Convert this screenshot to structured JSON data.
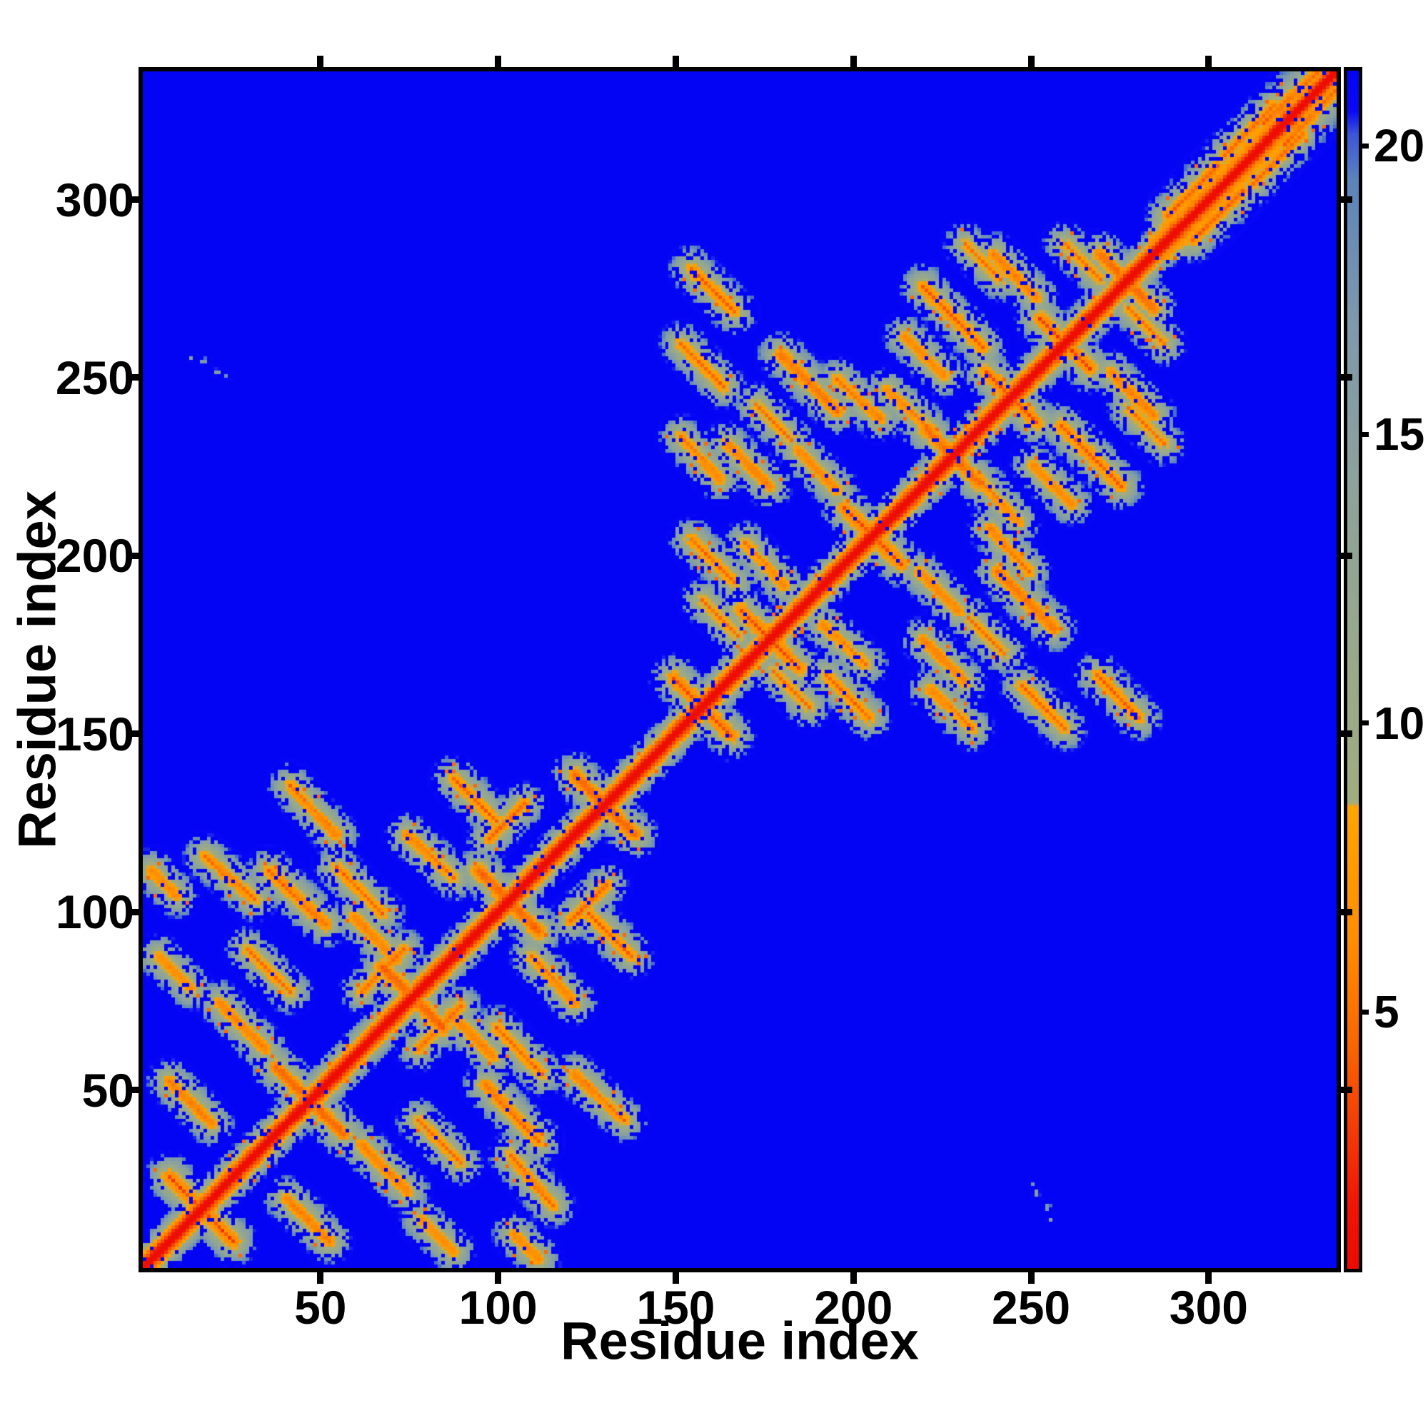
{
  "chart_data": {
    "type": "heatmap",
    "title": "",
    "xlabel": "Residue index",
    "ylabel": "Residue index",
    "n_residues": 336,
    "x_ticks": [
      50,
      100,
      150,
      200,
      250,
      300
    ],
    "y_ticks": [
      50,
      100,
      150,
      200,
      250,
      300
    ],
    "grid": false,
    "legend_position": "colorbar-right",
    "background_color": "#0404f5",
    "colorbar": {
      "min": 0.55,
      "max": 21.3,
      "ticks": [
        5,
        10,
        15,
        20
      ]
    },
    "colormap_stops": [
      {
        "v": 0.5,
        "c": "#ee0a02"
      },
      {
        "v": 1.6,
        "c": "#f01404"
      },
      {
        "v": 3.0,
        "c": "#f43c06"
      },
      {
        "v": 4.6,
        "c": "#fa6a00"
      },
      {
        "v": 6.2,
        "c": "#ff8d00"
      },
      {
        "v": 8.55,
        "c": "#ffa600"
      },
      {
        "v": 8.62,
        "c": "#a2ad7e"
      },
      {
        "v": 11.0,
        "c": "#99a989"
      },
      {
        "v": 14.0,
        "c": "#8da39b"
      },
      {
        "v": 17.0,
        "c": "#7d99ac"
      },
      {
        "v": 19.4,
        "c": "#5b84bb"
      },
      {
        "v": 20.2,
        "c": "#3a55d8"
      },
      {
        "v": 20.6,
        "c": "#0909f6"
      },
      {
        "v": 25.0,
        "c": "#0404f5"
      }
    ],
    "description": "Symmetric residue-residue distance map of a two-domain protein. Short distances (red/orange) along the diagonal and within two intra-domain blocks (residues ~2-143 and ~148-336); long distances (blue) between domains. C-terminal region ~283-336 forms a wide smooth near-diagonal band.",
    "diagonal_band": {
      "core_value": 0.6,
      "slope": 2.6,
      "tail_start": 283,
      "tail_slope": 1.15
    },
    "domains": [
      {
        "start": 2,
        "end": 143
      },
      {
        "start": 148,
        "end": 336
      }
    ],
    "features": [
      [
        8,
        26,
        25,
        9,
        3.2
      ],
      [
        38,
        57,
        56,
        39,
        3.4
      ],
      [
        68,
        85,
        84,
        69,
        3.4
      ],
      [
        95,
        112,
        111,
        96,
        3.4
      ],
      [
        122,
        139,
        138,
        123,
        3.4
      ],
      [
        18,
        116,
        32,
        104,
        4.4
      ],
      [
        36,
        112,
        52,
        97,
        4.0
      ],
      [
        3,
        112,
        10,
        105,
        4.8
      ],
      [
        55,
        113,
        68,
        100,
        4.6
      ],
      [
        60,
        99,
        72,
        87,
        4.6
      ],
      [
        22,
        75,
        35,
        62,
        4.5
      ],
      [
        8,
        53,
        20,
        41,
        4.5
      ],
      [
        42,
        136,
        55,
        122,
        4.5
      ],
      [
        88,
        138,
        100,
        126,
        4.4
      ],
      [
        75,
        122,
        88,
        110,
        4.6
      ],
      [
        30,
        90,
        42,
        78,
        4.8
      ],
      [
        5,
        88,
        14,
        79,
        5.0
      ],
      [
        98,
        121,
        108,
        131,
        4.6
      ],
      [
        62,
        78,
        74,
        90,
        5.0
      ],
      [
        150,
        166,
        165,
        151,
        3.4
      ],
      [
        169,
        185,
        184,
        170,
        3.4
      ],
      [
        198,
        214,
        213,
        199,
        3.4
      ],
      [
        221,
        236,
        235,
        222,
        3.6
      ],
      [
        238,
        252,
        251,
        239,
        3.6
      ],
      [
        253,
        267,
        266,
        254,
        3.4
      ],
      [
        270,
        285,
        284,
        271,
        3.6
      ],
      [
        155,
        281,
        167,
        269,
        4.2
      ],
      [
        152,
        260,
        164,
        248,
        4.5
      ],
      [
        180,
        257,
        196,
        241,
        4.0
      ],
      [
        220,
        276,
        237,
        259,
        4.1
      ],
      [
        240,
        285,
        252,
        273,
        4.5
      ],
      [
        152,
        234,
        163,
        222,
        4.8
      ],
      [
        165,
        232,
        177,
        220,
        4.6
      ],
      [
        196,
        250,
        208,
        239,
        4.5
      ],
      [
        210,
        247,
        222,
        236,
        4.8
      ],
      [
        155,
        205,
        167,
        193,
        4.6
      ],
      [
        170,
        204,
        181,
        192,
        4.9
      ],
      [
        215,
        262,
        226,
        251,
        4.9
      ],
      [
        158,
        188,
        168,
        178,
        5.0
      ],
      [
        232,
        288,
        242,
        278,
        5.0
      ],
      [
        260,
        288,
        270,
        278,
        5.0
      ],
      [
        185,
        230,
        196,
        219,
        4.8
      ],
      [
        173,
        243,
        183,
        233,
        5.0
      ],
      [
        289,
        296,
        303,
        310,
        4.6
      ],
      [
        305,
        313,
        319,
        327,
        4.8
      ],
      [
        316,
        322,
        331,
        336,
        4.5
      ]
    ],
    "specks": [
      [
        14,
        256,
        19,
        255,
        14.5
      ],
      [
        21,
        252,
        25,
        251,
        14.5
      ]
    ],
    "noise": {
      "jitter": 1.6,
      "dropout_base": 0.05,
      "dropout_scale": 0.5,
      "orange_sprinkle": 0.968,
      "pinhole": 0.05,
      "quantum": 0.66,
      "seed": 7
    }
  }
}
